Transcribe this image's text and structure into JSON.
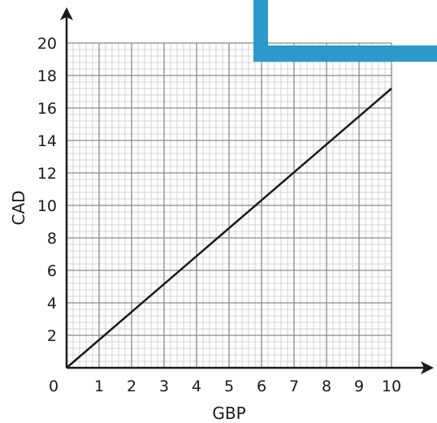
{
  "chart_data": {
    "type": "line",
    "xlabel": "GBP",
    "ylabel": "CAD",
    "xlim": [
      0,
      10
    ],
    "ylim": [
      0,
      20
    ],
    "x_ticks": [
      "0",
      "1",
      "2",
      "3",
      "4",
      "5",
      "6",
      "7",
      "8",
      "9",
      "10"
    ],
    "y_ticks": [
      "2",
      "4",
      "6",
      "8",
      "10",
      "12",
      "14",
      "16",
      "18",
      "20"
    ],
    "grid": true,
    "series": [
      {
        "x": [
          0,
          10
        ],
        "y": [
          0,
          17.2
        ],
        "color": "#1a1a1a"
      }
    ]
  },
  "colors": {
    "grid_minor": "#c8c8c8",
    "grid_major": "#8a8a8a",
    "axis": "#1a1a1a",
    "accent_shape": "#2b9ac9"
  }
}
